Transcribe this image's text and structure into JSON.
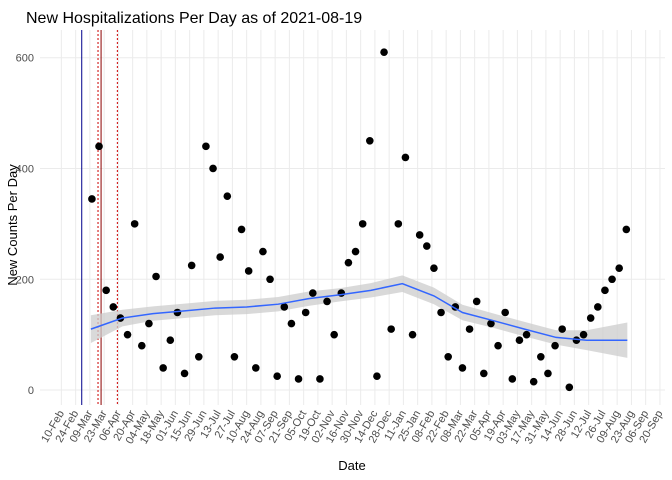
{
  "chart_data": {
    "type": "scatter",
    "title": "New Hospitalizations Per Day as of 2021-08-19",
    "x_label": "Date",
    "y_label": "New Counts Per Day",
    "xlim": [
      "2020-01-20",
      "2021-09-25"
    ],
    "ylim": [
      -27,
      650
    ],
    "yticks": [
      0,
      200,
      400,
      600
    ],
    "xticks": [
      {
        "value": "2020-02-10",
        "label": "10-Feb"
      },
      {
        "value": "2020-02-24",
        "label": "24-Feb"
      },
      {
        "value": "2020-03-09",
        "label": "09-Mar"
      },
      {
        "value": "2020-03-23",
        "label": "23-Mar"
      },
      {
        "value": "2020-04-06",
        "label": "06-Apr"
      },
      {
        "value": "2020-04-20",
        "label": "20-Apr"
      },
      {
        "value": "2020-05-04",
        "label": "04-May"
      },
      {
        "value": "2020-05-18",
        "label": "18-May"
      },
      {
        "value": "2020-06-01",
        "label": "01-Jun"
      },
      {
        "value": "2020-06-15",
        "label": "15-Jun"
      },
      {
        "value": "2020-06-29",
        "label": "29-Jun"
      },
      {
        "value": "2020-07-13",
        "label": "13-Jul"
      },
      {
        "value": "2020-07-27",
        "label": "27-Jul"
      },
      {
        "value": "2020-08-10",
        "label": "10-Aug"
      },
      {
        "value": "2020-08-24",
        "label": "24-Aug"
      },
      {
        "value": "2020-09-07",
        "label": "07-Sep"
      },
      {
        "value": "2020-09-21",
        "label": "21-Sep"
      },
      {
        "value": "2020-10-05",
        "label": "05-Oct"
      },
      {
        "value": "2020-10-19",
        "label": "19-Oct"
      },
      {
        "value": "2020-11-02",
        "label": "02-Nov"
      },
      {
        "value": "2020-11-16",
        "label": "16-Nov"
      },
      {
        "value": "2020-11-30",
        "label": "30-Nov"
      },
      {
        "value": "2020-12-14",
        "label": "14-Dec"
      },
      {
        "value": "2020-12-28",
        "label": "28-Dec"
      },
      {
        "value": "2021-01-11",
        "label": "11-Jan"
      },
      {
        "value": "2021-01-25",
        "label": "25-Jan"
      },
      {
        "value": "2021-02-08",
        "label": "08-Feb"
      },
      {
        "value": "2021-02-22",
        "label": "22-Feb"
      },
      {
        "value": "2021-03-08",
        "label": "08-Mar"
      },
      {
        "value": "2021-03-22",
        "label": "22-Mar"
      },
      {
        "value": "2021-04-05",
        "label": "05-Apr"
      },
      {
        "value": "2021-04-19",
        "label": "19-Apr"
      },
      {
        "value": "2021-05-03",
        "label": "03-May"
      },
      {
        "value": "2021-05-17",
        "label": "17-May"
      },
      {
        "value": "2021-05-31",
        "label": "31-May"
      },
      {
        "value": "2021-06-14",
        "label": "14-Jun"
      },
      {
        "value": "2021-06-28",
        "label": "28-Jun"
      },
      {
        "value": "2021-07-12",
        "label": "12-Jul"
      },
      {
        "value": "2021-07-26",
        "label": "26-Jul"
      },
      {
        "value": "2021-08-09",
        "label": "09-Aug"
      },
      {
        "value": "2021-08-23",
        "label": "23-Aug"
      },
      {
        "value": "2021-09-06",
        "label": "06-Sep"
      },
      {
        "value": "2021-09-20",
        "label": "20-Sep"
      }
    ],
    "grid": true,
    "color": "#000000",
    "x": [
      "2020-03-11",
      "2020-03-18",
      "2020-03-25",
      "2020-04-01",
      "2020-04-08",
      "2020-04-15",
      "2020-04-22",
      "2020-04-29",
      "2020-05-06",
      "2020-05-13",
      "2020-05-20",
      "2020-05-27",
      "2020-06-03",
      "2020-06-10",
      "2020-06-17",
      "2020-06-24",
      "2020-07-01",
      "2020-07-08",
      "2020-07-15",
      "2020-07-22",
      "2020-07-29",
      "2020-08-05",
      "2020-08-12",
      "2020-08-19",
      "2020-08-26",
      "2020-09-02",
      "2020-09-09",
      "2020-09-16",
      "2020-09-23",
      "2020-09-30",
      "2020-10-07",
      "2020-10-14",
      "2020-10-21",
      "2020-10-28",
      "2020-11-04",
      "2020-11-11",
      "2020-11-18",
      "2020-11-25",
      "2020-12-02",
      "2020-12-09",
      "2020-12-16",
      "2020-12-23",
      "2020-12-30",
      "2021-01-06",
      "2021-01-13",
      "2021-01-20",
      "2021-01-27",
      "2021-02-03",
      "2021-02-10",
      "2021-02-17",
      "2021-02-24",
      "2021-03-03",
      "2021-03-10",
      "2021-03-17",
      "2021-03-24",
      "2021-03-31",
      "2021-04-07",
      "2021-04-14",
      "2021-04-21",
      "2021-04-28",
      "2021-05-05",
      "2021-05-12",
      "2021-05-19",
      "2021-05-26",
      "2021-06-02",
      "2021-06-09",
      "2021-06-16",
      "2021-06-23",
      "2021-06-30",
      "2021-07-07",
      "2021-07-14",
      "2021-07-21",
      "2021-07-28",
      "2021-08-04",
      "2021-08-11",
      "2021-08-18"
    ],
    "values": [
      345,
      440,
      180,
      150,
      130,
      100,
      300,
      80,
      120,
      205,
      40,
      90,
      140,
      30,
      225,
      60,
      440,
      400,
      240,
      350,
      60,
      290,
      215,
      40,
      250,
      200,
      25,
      150,
      120,
      20,
      140,
      175,
      20,
      160,
      100,
      175,
      230,
      250,
      300,
      450,
      25,
      610,
      110,
      300,
      420,
      100,
      280,
      260,
      220,
      140,
      60,
      150,
      40,
      110,
      160,
      30,
      120,
      80,
      140,
      20,
      90,
      100,
      15,
      60,
      30,
      80,
      110,
      5,
      90,
      100,
      130,
      150,
      180,
      200,
      220,
      290
    ],
    "trend": {
      "color": "#3366ff",
      "band_color": "#cccccc",
      "x": [
        "2020-03-10",
        "2020-04-10",
        "2020-05-10",
        "2020-06-10",
        "2020-07-10",
        "2020-08-10",
        "2020-09-10",
        "2020-10-10",
        "2020-11-10",
        "2020-12-10",
        "2021-01-10",
        "2021-02-10",
        "2021-03-10",
        "2021-04-10",
        "2021-05-10",
        "2021-06-10",
        "2021-07-10",
        "2021-08-19"
      ],
      "values": [
        110,
        130,
        138,
        143,
        148,
        150,
        155,
        165,
        172,
        180,
        192,
        170,
        140,
        125,
        110,
        95,
        90,
        90
      ],
      "lower": [
        85,
        115,
        125,
        130,
        135,
        137,
        142,
        152,
        160,
        167,
        177,
        155,
        126,
        112,
        97,
        82,
        72,
        58
      ],
      "upper": [
        135,
        145,
        151,
        156,
        161,
        163,
        168,
        178,
        184,
        193,
        207,
        185,
        154,
        138,
        123,
        108,
        108,
        122
      ]
    },
    "vlines": [
      {
        "x": "2020-03-01",
        "color": "#00008b",
        "dash": false
      },
      {
        "x": "2020-03-17",
        "color": "#cc0000",
        "dash": true
      },
      {
        "x": "2020-03-20",
        "color": "#8b0000",
        "dash": false
      },
      {
        "x": "2020-04-05",
        "color": "#cc0000",
        "dash": true
      }
    ]
  }
}
